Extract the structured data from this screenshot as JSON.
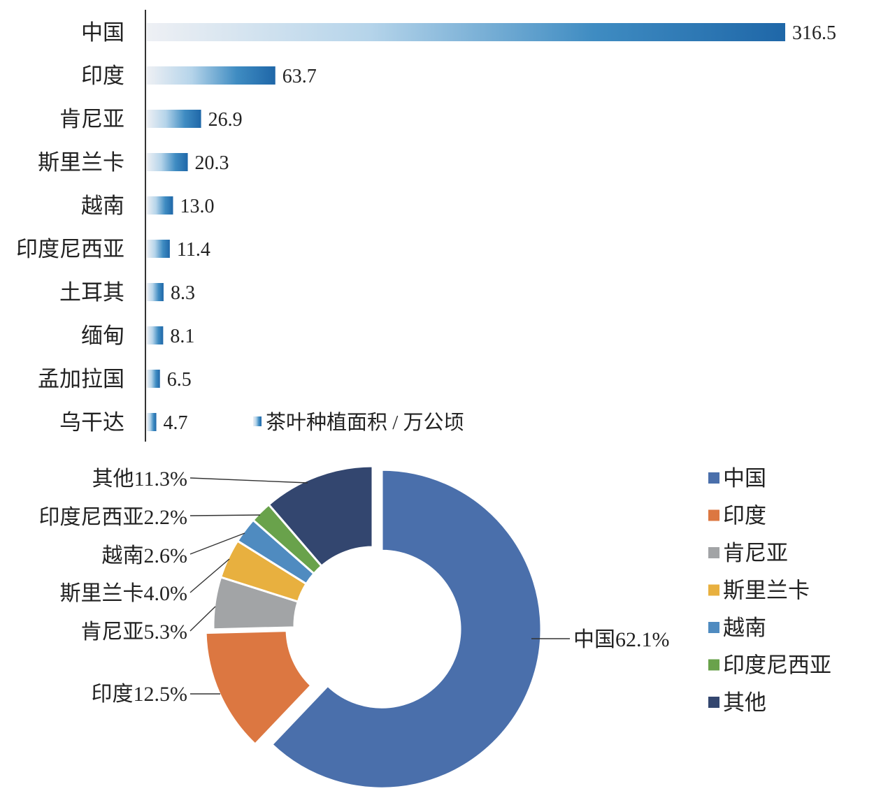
{
  "chart_data": [
    {
      "type": "bar",
      "orientation": "horizontal",
      "categories": [
        "中国",
        "印度",
        "肯尼亚",
        "斯里兰卡",
        "越南",
        "印度尼西亚",
        "土耳其",
        "缅甸",
        "孟加拉国",
        "乌干达"
      ],
      "values": [
        316.5,
        63.7,
        26.9,
        20.3,
        13.0,
        11.4,
        8.3,
        8.1,
        6.5,
        4.7
      ],
      "value_labels": [
        "316.5",
        "63.7",
        "26.9",
        "20.3",
        "13.0",
        "11.4",
        "8.3",
        "8.1",
        "6.5",
        "4.7"
      ],
      "series": [
        {
          "name": "茶叶种植面积 / 万公顷",
          "values": [
            316.5,
            63.7,
            26.9,
            20.3,
            13.0,
            11.4,
            8.3,
            8.1,
            6.5,
            4.7
          ]
        }
      ],
      "legend": {
        "label": "茶叶种植面积 / 万公顷",
        "position": "bottom-center"
      },
      "bar_gradient": [
        "#eef0f4",
        "#1f67a8"
      ],
      "xlim": [
        0,
        316.5
      ],
      "grid": false
    },
    {
      "type": "pie",
      "variant": "donut",
      "categories": [
        "中国",
        "印度",
        "肯尼亚",
        "斯里兰卡",
        "越南",
        "印度尼西亚",
        "其他"
      ],
      "values": [
        62.1,
        12.5,
        5.3,
        4.0,
        2.6,
        2.2,
        11.3
      ],
      "slice_labels": [
        "中国62.1%",
        "印度12.5%",
        "肯尼亚5.3%",
        "斯里兰卡4.0%",
        "越南2.6%",
        "印度尼西亚2.2%",
        "其他11.3%"
      ],
      "colors": [
        "#4a6fab",
        "#dc7741",
        "#a2a4a6",
        "#e8b03f",
        "#4f8bc0",
        "#69a24b",
        "#33466f"
      ],
      "legend": {
        "position": "right",
        "labels": [
          "中国",
          "印度",
          "肯尼亚",
          "斯里兰卡",
          "越南",
          "印度尼西亚",
          "其他"
        ]
      }
    }
  ]
}
